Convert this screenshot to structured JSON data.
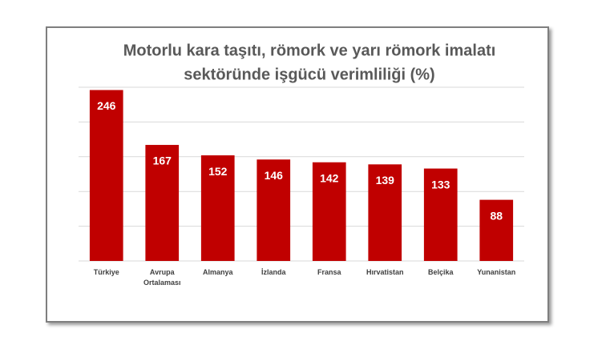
{
  "chart_data": {
    "type": "bar",
    "title_lines": [
      "Motorlu kara taşıtı, römork ve yarı römork imalatı",
      "sektöründe işgücü verimliliği (%)"
    ],
    "categories": [
      "Türkiye",
      "Avrupa Ortalaması",
      "Almanya",
      "İzlanda",
      "Fransa",
      "Hırvatistan",
      "Belçika",
      "Yunanistan"
    ],
    "values": [
      246,
      167,
      152,
      146,
      142,
      139,
      133,
      88
    ],
    "color": "#c00000",
    "ylim": [
      0,
      250
    ],
    "yticks": [
      0,
      50,
      100,
      150,
      200,
      250
    ],
    "grid": true
  }
}
